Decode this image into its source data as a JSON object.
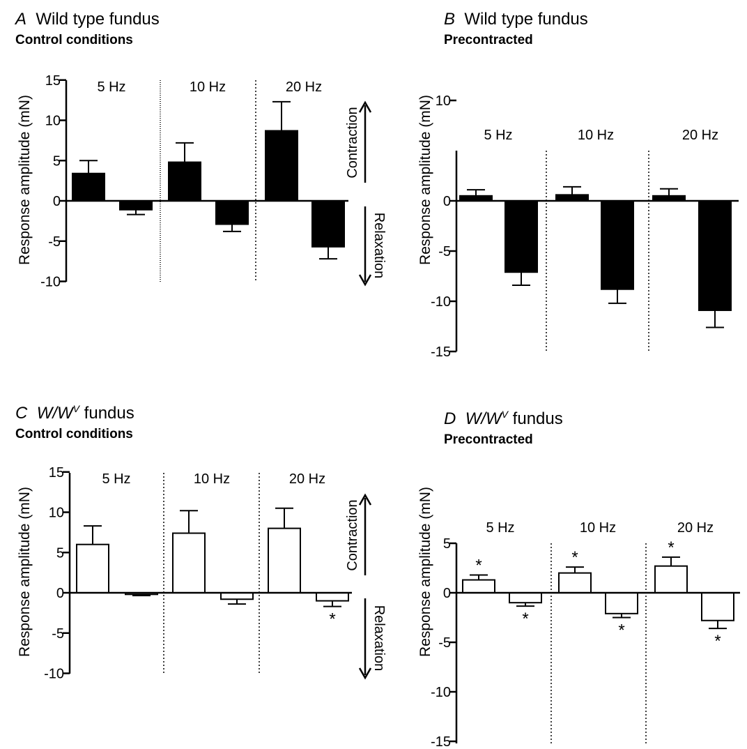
{
  "chart_data": [
    {
      "panel": "A",
      "type": "bar",
      "title": "Wild type fundus",
      "subtitle": "Control conditions",
      "ylabel": "Response amplitude (mN)",
      "ylim": [
        -10,
        15
      ],
      "yticks": [
        15,
        10,
        5,
        0,
        -5,
        -10
      ],
      "fill": "#000000",
      "groups": [
        "5 Hz",
        "10 Hz",
        "20 Hz"
      ],
      "values": [
        3.4,
        -1.1,
        4.8,
        -2.9,
        8.7,
        -5.7
      ],
      "errors": [
        1.6,
        0.6,
        2.4,
        0.9,
        3.6,
        1.5
      ],
      "significant": [
        false,
        false,
        false,
        false,
        false,
        false
      ],
      "arrows": {
        "up": "Contraction",
        "down": "Relaxation"
      }
    },
    {
      "panel": "B",
      "type": "bar",
      "title": "Wild type fundus",
      "subtitle": "Precontracted",
      "ylabel": "Response amplitude (mN)",
      "ylim": [
        -15,
        10
      ],
      "yticks": [
        10,
        0,
        -5,
        -10,
        -15
      ],
      "fill": "#000000",
      "groups": [
        "5 Hz",
        "10 Hz",
        "20 Hz"
      ],
      "values": [
        0.5,
        -7.1,
        0.6,
        -8.8,
        0.5,
        -10.9
      ],
      "errors": [
        0.6,
        1.3,
        0.8,
        1.4,
        0.7,
        1.7
      ],
      "significant": [
        false,
        false,
        false,
        false,
        false,
        false
      ]
    },
    {
      "panel": "C",
      "type": "bar",
      "title_prefix": "W/W",
      "title_sup": "V",
      "title_suffix": " fundus",
      "subtitle": "Control conditions",
      "ylabel": "Response amplitude (mN)",
      "ylim": [
        -10,
        15
      ],
      "yticks": [
        15,
        10,
        5,
        0,
        -5,
        -10
      ],
      "fill": "#ffffff",
      "groups": [
        "5 Hz",
        "10 Hz",
        "20 Hz"
      ],
      "values": [
        6.0,
        -0.2,
        7.4,
        -0.8,
        8.0,
        -1.0
      ],
      "errors": [
        2.3,
        0.15,
        2.8,
        0.6,
        2.5,
        0.7
      ],
      "significant": [
        false,
        false,
        false,
        false,
        false,
        true
      ],
      "arrows": {
        "up": "Contraction",
        "down": "Relaxation"
      }
    },
    {
      "panel": "D",
      "type": "bar",
      "title_prefix": "W/W",
      "title_sup": "V",
      "title_suffix": " fundus",
      "subtitle": "Precontracted",
      "ylabel": "Response amplitude (mN)",
      "ylim": [
        -15,
        10
      ],
      "yticks": [
        5,
        0,
        -5,
        -10,
        -15
      ],
      "fill": "#ffffff",
      "groups": [
        "5 Hz",
        "10 Hz",
        "20 Hz"
      ],
      "values": [
        1.3,
        -1.0,
        2.0,
        -2.1,
        2.7,
        -2.8
      ],
      "errors": [
        0.5,
        0.35,
        0.6,
        0.4,
        0.9,
        0.8
      ],
      "significant": [
        true,
        true,
        true,
        true,
        true,
        true
      ]
    }
  ]
}
